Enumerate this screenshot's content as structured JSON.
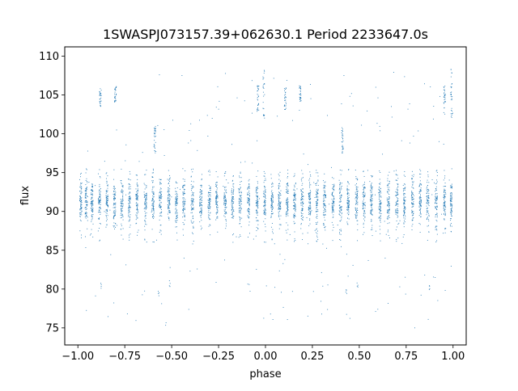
{
  "chart_data": {
    "type": "scatter",
    "title": "1SWASPJ073157.39+062630.1 Period 2233647.0s",
    "xlabel": "phase",
    "ylabel": "flux",
    "xlim": [
      -1.07,
      1.07
    ],
    "ylim": [
      72.8,
      111.2
    ],
    "x_ticks": [
      -1.0,
      -0.75,
      -0.5,
      -0.25,
      0.0,
      0.25,
      0.5,
      0.75,
      1.0
    ],
    "x_tick_labels": [
      "−1.00",
      "−0.75",
      "−0.50",
      "−0.25",
      "0.00",
      "0.25",
      "0.50",
      "0.75",
      "1.00"
    ],
    "y_ticks": [
      75,
      80,
      85,
      90,
      95,
      100,
      105,
      110
    ],
    "y_tick_labels": [
      "75",
      "80",
      "85",
      "90",
      "95",
      "100",
      "105",
      "110"
    ],
    "grid": false,
    "legend": "none",
    "marker_color": "#1f77b4",
    "phase_fold": {
      "period_span": [
        -1.0,
        1.0
      ],
      "baseline_flux_center": 91.2,
      "baseline_flux_spread": 1.3,
      "observing_nights": [
        {
          "phase": -0.985,
          "width": 0.012
        },
        {
          "phase": -0.955,
          "width": 0.014
        },
        {
          "phase": -0.925,
          "width": 0.012
        },
        {
          "phase": -0.885,
          "width": 0.014
        },
        {
          "phase": -0.845,
          "width": 0.012
        },
        {
          "phase": -0.805,
          "width": 0.012
        },
        {
          "phase": -0.765,
          "width": 0.014
        },
        {
          "phase": -0.725,
          "width": 0.012
        },
        {
          "phase": -0.685,
          "width": 0.012
        },
        {
          "phase": -0.64,
          "width": 0.014
        },
        {
          "phase": -0.6,
          "width": 0.012
        },
        {
          "phase": -0.56,
          "width": 0.014
        },
        {
          "phase": -0.515,
          "width": 0.014
        },
        {
          "phase": -0.475,
          "width": 0.012
        },
        {
          "phase": -0.435,
          "width": 0.014
        },
        {
          "phase": -0.39,
          "width": 0.014
        },
        {
          "phase": -0.345,
          "width": 0.014
        },
        {
          "phase": -0.3,
          "width": 0.014
        },
        {
          "phase": -0.26,
          "width": 0.012
        },
        {
          "phase": -0.215,
          "width": 0.014
        },
        {
          "phase": -0.175,
          "width": 0.012
        },
        {
          "phase": -0.135,
          "width": 0.014
        },
        {
          "phase": -0.09,
          "width": 0.012
        },
        {
          "phase": -0.045,
          "width": 0.012
        },
        {
          "phase": -0.005,
          "width": 0.012
        },
        {
          "phase": 0.035,
          "width": 0.012
        },
        {
          "phase": 0.075,
          "width": 0.014
        },
        {
          "phase": 0.115,
          "width": 0.012
        },
        {
          "phase": 0.155,
          "width": 0.012
        },
        {
          "phase": 0.195,
          "width": 0.014
        },
        {
          "phase": 0.235,
          "width": 0.012
        },
        {
          "phase": 0.275,
          "width": 0.012
        },
        {
          "phase": 0.315,
          "width": 0.014
        },
        {
          "phase": 0.36,
          "width": 0.012
        },
        {
          "phase": 0.4,
          "width": 0.014
        },
        {
          "phase": 0.44,
          "width": 0.012
        },
        {
          "phase": 0.485,
          "width": 0.014
        },
        {
          "phase": 0.525,
          "width": 0.014
        },
        {
          "phase": 0.565,
          "width": 0.012
        },
        {
          "phase": 0.61,
          "width": 0.014
        },
        {
          "phase": 0.655,
          "width": 0.014
        },
        {
          "phase": 0.7,
          "width": 0.014
        },
        {
          "phase": 0.74,
          "width": 0.012
        },
        {
          "phase": 0.785,
          "width": 0.014
        },
        {
          "phase": 0.825,
          "width": 0.012
        },
        {
          "phase": 0.865,
          "width": 0.014
        },
        {
          "phase": 0.91,
          "width": 0.012
        },
        {
          "phase": 0.955,
          "width": 0.012
        },
        {
          "phase": 0.99,
          "width": 0.01
        }
      ],
      "flare_clusters": [
        {
          "phase": -0.88,
          "flux_min": 103.5,
          "flux_max": 106.0
        },
        {
          "phase": -0.8,
          "flux_min": 104.0,
          "flux_max": 106.2
        },
        {
          "phase": -0.59,
          "flux_min": 97.5,
          "flux_max": 101.0
        },
        {
          "phase": -0.04,
          "flux_min": 102.5,
          "flux_max": 106.2
        },
        {
          "phase": -0.01,
          "flux_min": 102.0,
          "flux_max": 108.3
        },
        {
          "phase": 0.105,
          "flux_min": 103.0,
          "flux_max": 106.0
        },
        {
          "phase": 0.185,
          "flux_min": 104.0,
          "flux_max": 106.2
        },
        {
          "phase": 0.41,
          "flux_min": 97.5,
          "flux_max": 101.0
        },
        {
          "phase": 0.955,
          "flux_min": 102.5,
          "flux_max": 106.2
        },
        {
          "phase": 0.99,
          "flux_min": 102.0,
          "flux_max": 108.3
        }
      ],
      "dip_clusters": [
        {
          "phase": -0.57,
          "flux_min": 79.0,
          "flux_max": 80.0
        },
        {
          "phase": -0.51,
          "flux_min": 80.2,
          "flux_max": 81.2
        },
        {
          "phase": 0.43,
          "flux_min": 79.0,
          "flux_max": 80.0
        },
        {
          "phase": 0.49,
          "flux_min": 80.2,
          "flux_max": 81.2
        },
        {
          "phase": -0.875,
          "flux_min": 80.0,
          "flux_max": 80.8
        },
        {
          "phase": 0.875,
          "flux_min": 79.8,
          "flux_max": 80.6
        }
      ]
    }
  }
}
